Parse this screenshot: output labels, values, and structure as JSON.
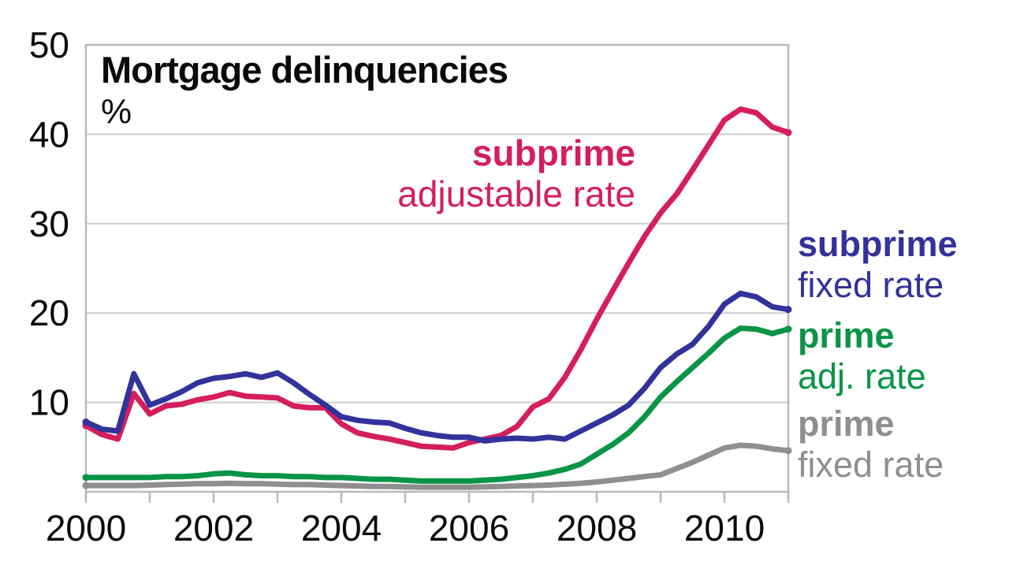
{
  "title": "Mortgage delinquencies",
  "unit_label": "%",
  "annotation": {
    "line1": "subprime",
    "line2": "adjustable rate"
  },
  "legend": [
    {
      "bold": "subprime",
      "rest": "fixed rate",
      "color": "#32329b"
    },
    {
      "bold": "prime",
      "rest": "adj. rate",
      "color": "#0a9447"
    },
    {
      "bold": "prime",
      "rest": "fixed rate",
      "color": "#8f8f8f"
    }
  ],
  "colors": {
    "subprime_arm": "#d41e5e",
    "subprime_frm": "#32329b",
    "prime_arm": "#0a9447",
    "prime_frm": "#8f8f8f",
    "gridline": "#cdcdcd",
    "axis": "#b9b9b9",
    "text": "#0a0a0a"
  },
  "chart_data": {
    "type": "line",
    "title": "Mortgage delinquencies",
    "ylabel": "%",
    "xlim": [
      2000,
      2011
    ],
    "ylim": [
      0,
      50
    ],
    "y_ticks": [
      10,
      20,
      30,
      40,
      50
    ],
    "x_minor_tick_every_year": true,
    "x_tick_labels": [
      "2000",
      "2002",
      "2004",
      "2006",
      "2008",
      "2010"
    ],
    "x_tick_years": [
      2000,
      2002,
      2004,
      2006,
      2008,
      2010
    ],
    "grid": true,
    "legend_position": "right",
    "x_start": 2000.0,
    "x_step": 0.25,
    "series": [
      {
        "key": "prime_frm",
        "name": "prime fixed rate",
        "color": "#8f8f8f",
        "values": [
          0.7,
          0.7,
          0.7,
          0.7,
          0.75,
          0.8,
          0.85,
          0.9,
          0.9,
          0.95,
          0.9,
          0.9,
          0.85,
          0.8,
          0.8,
          0.75,
          0.7,
          0.65,
          0.6,
          0.6,
          0.55,
          0.5,
          0.5,
          0.5,
          0.5,
          0.55,
          0.6,
          0.65,
          0.7,
          0.75,
          0.85,
          0.95,
          1.1,
          1.3,
          1.5,
          1.7,
          1.9,
          2.6,
          3.3,
          4.1,
          4.9,
          5.2,
          5.1,
          4.8,
          4.6
        ]
      },
      {
        "key": "prime_arm",
        "name": "prime adjustable rate",
        "color": "#0a9447",
        "values": [
          1.6,
          1.6,
          1.6,
          1.6,
          1.6,
          1.7,
          1.7,
          1.8,
          2.0,
          2.1,
          1.9,
          1.8,
          1.8,
          1.7,
          1.7,
          1.6,
          1.6,
          1.5,
          1.4,
          1.4,
          1.3,
          1.2,
          1.2,
          1.2,
          1.2,
          1.3,
          1.4,
          1.6,
          1.8,
          2.1,
          2.5,
          3.1,
          4.2,
          5.3,
          6.6,
          8.4,
          10.6,
          12.3,
          13.9,
          15.5,
          17.2,
          18.3,
          18.2,
          17.7,
          18.2
        ]
      },
      {
        "key": "subprime_arm",
        "name": "subprime adjustable rate",
        "color": "#d41e5e",
        "values": [
          7.4,
          6.4,
          5.9,
          11.0,
          8.7,
          9.6,
          9.8,
          10.3,
          10.6,
          11.1,
          10.7,
          10.6,
          10.5,
          9.6,
          9.4,
          9.4,
          7.6,
          6.6,
          6.2,
          5.9,
          5.5,
          5.1,
          5.0,
          4.9,
          5.5,
          5.9,
          6.3,
          7.3,
          9.5,
          10.4,
          12.8,
          15.9,
          19.3,
          22.5,
          25.6,
          28.6,
          31.2,
          33.3,
          36.0,
          38.8,
          41.6,
          42.8,
          42.4,
          40.8,
          40.2
        ]
      },
      {
        "key": "subprime_frm",
        "name": "subprime fixed rate",
        "color": "#32329b",
        "values": [
          7.8,
          7.0,
          6.8,
          13.2,
          9.7,
          10.4,
          11.2,
          12.2,
          12.7,
          12.9,
          13.2,
          12.8,
          13.3,
          12.2,
          10.9,
          9.7,
          8.4,
          8.0,
          7.8,
          7.7,
          7.1,
          6.6,
          6.3,
          6.1,
          6.1,
          5.7,
          5.9,
          6.0,
          5.9,
          6.1,
          5.9,
          6.8,
          7.7,
          8.6,
          9.7,
          11.6,
          13.9,
          15.4,
          16.5,
          18.5,
          21.0,
          22.2,
          21.8,
          20.7,
          20.4
        ]
      }
    ]
  }
}
